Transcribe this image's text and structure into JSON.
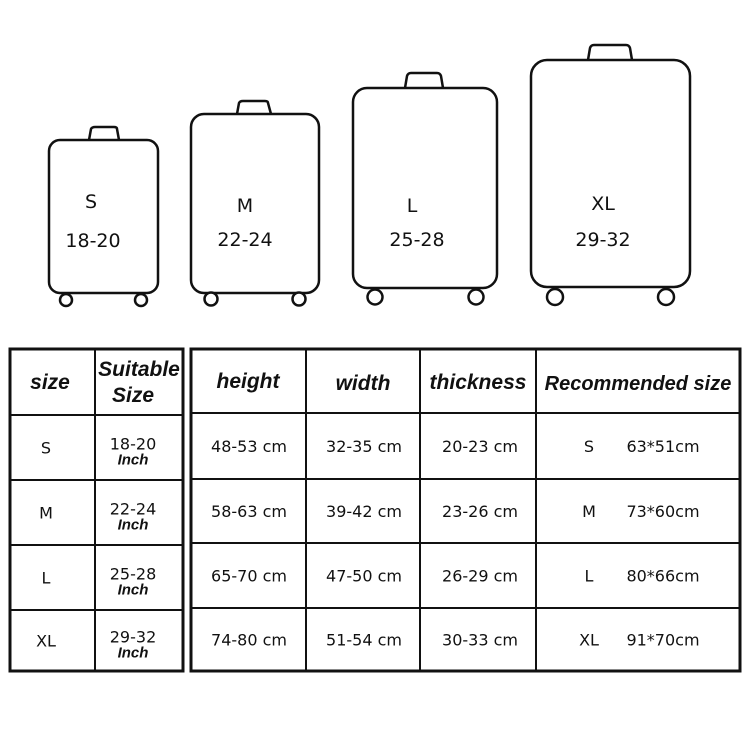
{
  "luggage": [
    {
      "size": "S",
      "range": "18-20"
    },
    {
      "size": "M",
      "range": "22-24"
    },
    {
      "size": "L",
      "range": "25-28"
    },
    {
      "size": "XL",
      "range": "29-32"
    }
  ],
  "size_table": {
    "headers": {
      "size": "size",
      "suitable_line1": "Suitable",
      "suitable_line2": "Size"
    },
    "rows": [
      {
        "size": "S",
        "inches": "18-20",
        "unit": "Inch"
      },
      {
        "size": "M",
        "inches": "22-24",
        "unit": "Inch"
      },
      {
        "size": "L",
        "inches": "25-28",
        "unit": "Inch"
      },
      {
        "size": "XL",
        "inches": "29-32",
        "unit": "Inch"
      }
    ]
  },
  "dimension_table": {
    "headers": {
      "height": "height",
      "width": "width",
      "thickness": "thickness",
      "recommended": "Recommended size"
    },
    "rows": [
      {
        "height": "48-53 cm",
        "width": "32-35 cm",
        "thickness": "20-23 cm",
        "rec_size": "S",
        "rec_dims": "63*51cm"
      },
      {
        "height": "58-63 cm",
        "width": "39-42 cm",
        "thickness": "23-26 cm",
        "rec_size": "M",
        "rec_dims": "73*60cm"
      },
      {
        "height": "65-70 cm",
        "width": "47-50 cm",
        "thickness": "26-29 cm",
        "rec_size": "L",
        "rec_dims": "80*66cm"
      },
      {
        "height": "74-80 cm",
        "width": "51-54 cm",
        "thickness": "30-33 cm",
        "rec_size": "XL",
        "rec_dims": "91*70cm"
      }
    ]
  }
}
